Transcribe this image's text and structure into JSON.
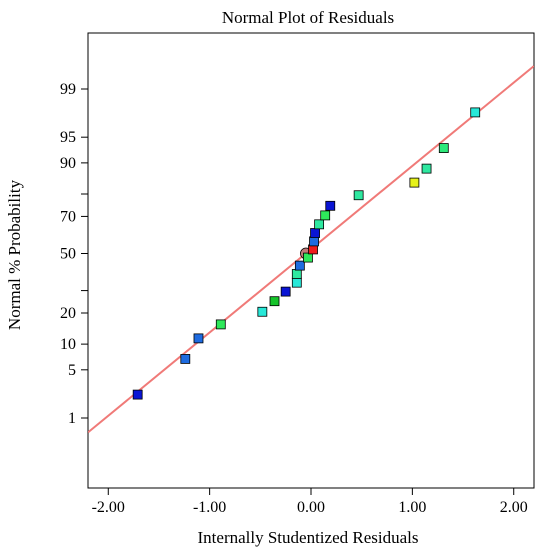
{
  "chart_data": {
    "type": "scatter",
    "title": "Normal Plot of Residuals",
    "xlabel": "Internally Studentized Residuals",
    "ylabel": "Normal % Probability",
    "xlim": [
      -2.2,
      2.2
    ],
    "x_ticks": [
      -2.0,
      -1.0,
      0.0,
      1.0,
      2.0
    ],
    "x_tick_labels": [
      "-2.00",
      "-1.00",
      "0.00",
      "1.00",
      "2.00"
    ],
    "y_scale": "normal probability",
    "y_ticks": [
      1,
      5,
      10,
      20,
      30,
      50,
      70,
      80,
      90,
      95,
      99
    ],
    "y_tick_labels": [
      "1",
      "5",
      "10",
      "20",
      "",
      "50",
      "70",
      "",
      "90",
      "95",
      "99"
    ],
    "grid": false,
    "reference_line": {
      "color": "#f07a78",
      "through": [
        [
          -2.2,
          0.57
        ],
        [
          2.2,
          99.6
        ]
      ]
    },
    "points": [
      {
        "x": -1.71,
        "y": 2.3,
        "color": "#0a14d4"
      },
      {
        "x": -1.24,
        "y": 6.8,
        "color": "#1e6be0"
      },
      {
        "x": -1.11,
        "y": 11.5,
        "color": "#1e6be0"
      },
      {
        "x": -0.89,
        "y": 15.8,
        "color": "#2ee85a"
      },
      {
        "x": -0.48,
        "y": 20.5,
        "color": "#27e8d8"
      },
      {
        "x": -0.36,
        "y": 25.0,
        "color": "#16c42a"
      },
      {
        "x": -0.25,
        "y": 29.5,
        "color": "#0a14d4"
      },
      {
        "x": -0.14,
        "y": 34.0,
        "color": "#27e8d8"
      },
      {
        "x": -0.14,
        "y": 38.6,
        "color": "#2ee8a0"
      },
      {
        "x": -0.11,
        "y": 43.2,
        "color": "#1e6be0"
      },
      {
        "x": -0.03,
        "y": 47.7,
        "color": "#2ee85a"
      },
      {
        "x": 0.02,
        "y": 52.3,
        "color": "#ee1c1c"
      },
      {
        "x": 0.03,
        "y": 56.8,
        "color": "#1e6be0"
      },
      {
        "x": 0.04,
        "y": 61.4,
        "color": "#0a14d4"
      },
      {
        "x": 0.08,
        "y": 66.0,
        "color": "#2ee8a0"
      },
      {
        "x": 0.14,
        "y": 70.5,
        "color": "#2ee85a"
      },
      {
        "x": 0.19,
        "y": 75.0,
        "color": "#0a14d4"
      },
      {
        "x": 0.47,
        "y": 79.5,
        "color": "#2ee8a0"
      },
      {
        "x": 1.02,
        "y": 84.2,
        "color": "#e6f21a"
      },
      {
        "x": 1.14,
        "y": 88.5,
        "color": "#2ee8a0"
      },
      {
        "x": 1.31,
        "y": 93.2,
        "color": "#2ee87a"
      },
      {
        "x": 1.62,
        "y": 97.7,
        "color": "#27e8d8"
      }
    ],
    "center_marker": {
      "x": -0.05,
      "y": 50.0,
      "shape": "circle",
      "color": "#c07a78"
    }
  }
}
